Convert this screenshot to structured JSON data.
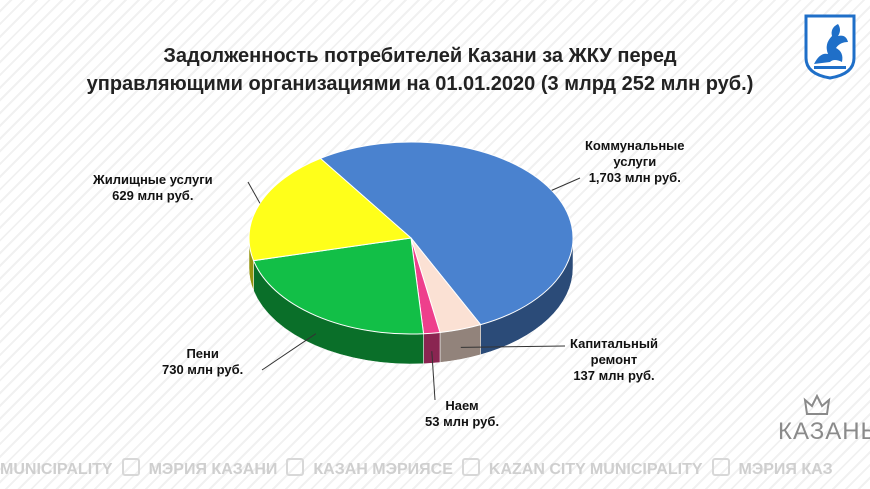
{
  "title_line1": "Задолженность потребителей Казани за ЖКУ перед",
  "title_line2": "управляющими организациями на 01.01.2020   (3 млрд 252 млн руб.)",
  "brand": "КАЗАНЬ",
  "footer": {
    "segments": [
      "MUNICIPALITY",
      "МЭРИЯ КАЗАНИ",
      "КАЗАН МЭРИЯСЕ",
      "KAZAN CITY MUNICIPALITY",
      "МЭРИЯ КАЗ"
    ]
  },
  "chart_data": {
    "type": "pie",
    "title": "Задолженность потребителей Казани за ЖКУ перед управляющими организациями на 01.01.2020   (3 млрд 252 млн руб.)",
    "slices": [
      {
        "label": "Коммунальные услуги",
        "value": 1703,
        "value_label": "1,703 млн руб.",
        "color": "#4a82cf"
      },
      {
        "label": "Капитальный ремонт",
        "value": 137,
        "value_label": "137 млн руб.",
        "color": "#fbe1d4"
      },
      {
        "label": "Наем",
        "value": 53,
        "value_label": "53 млн руб.",
        "color": "#ee3f8c"
      },
      {
        "label": "Пени",
        "value": 730,
        "value_label": "730 млн руб.",
        "color": "#12bf47"
      },
      {
        "label": "Жилищные услуги",
        "value": 629,
        "value_label": "629 млн руб.",
        "color": "#ffff1a"
      }
    ],
    "labels": {
      "kommun_l1": "Коммунальные",
      "kommun_l2": "услуги",
      "kommun_v": "1,703 млн руб.",
      "kap_l1": "Капитальный",
      "kap_l2": "ремонт",
      "kap_v": "137 млн руб.",
      "naem_l": "Наем",
      "naem_v": "53 млн руб.",
      "peni_l": "Пени",
      "peni_v": "730 млн руб.",
      "zhil_l": "Жилищные услуги",
      "zhil_v": "629 млн руб."
    }
  }
}
